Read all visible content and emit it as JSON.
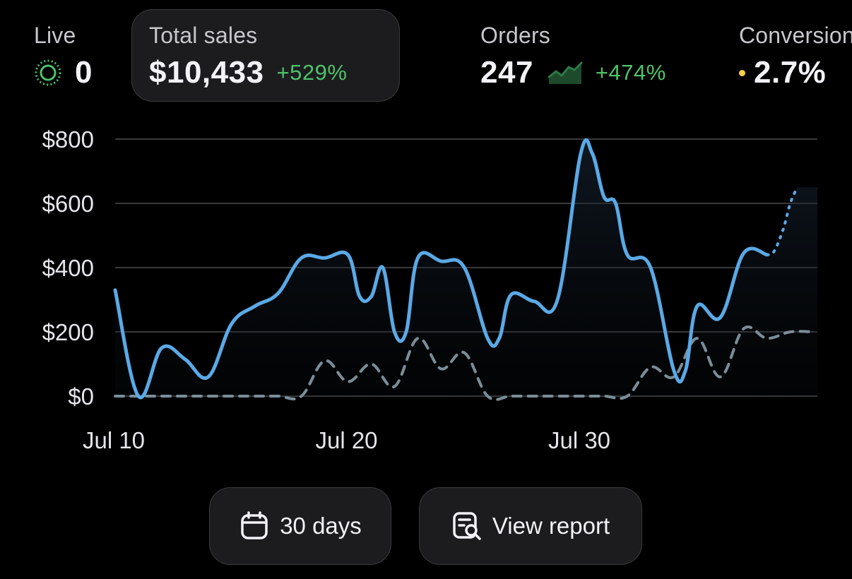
{
  "metrics": {
    "live": {
      "label": "Live",
      "value": "0"
    },
    "total_sales": {
      "label": "Total sales",
      "value": "$10,433",
      "change": "+529%"
    },
    "orders": {
      "label": "Orders",
      "value": "247",
      "change": "+474%"
    },
    "conversion": {
      "label": "Conversion",
      "value": "2.7%"
    }
  },
  "icons": {
    "live": "live-pulse-icon",
    "orders_trend": "sparkline-icon",
    "conversion_status": "dot-icon",
    "range": "calendar-icon",
    "report": "report-search-icon"
  },
  "colors": {
    "background": "#000000",
    "current_series": "#5aa9e6",
    "previous_series": "#7a8e99",
    "positive_change": "#4fc26a",
    "live_ring": "#4fc26a",
    "conversion_dot": "#f5d142",
    "grid": "#3a3a3c"
  },
  "chart_data": {
    "type": "line",
    "y_ticks": [
      "$800",
      "$600",
      "$400",
      "$200",
      "$0"
    ],
    "y_tick_values": [
      800,
      600,
      400,
      200,
      0
    ],
    "ylim": [
      0,
      800
    ],
    "x_tick_labels": [
      "Jul 10",
      "Jul 20",
      "Jul 30"
    ],
    "x_tick_days": [
      10,
      20,
      30
    ],
    "xlim": [
      10,
      40
    ],
    "grid": true,
    "series": [
      {
        "style": "solid",
        "x": [
          10,
          11,
          12,
          13,
          14,
          15,
          16,
          17,
          18,
          19,
          20,
          20.5,
          21,
          21.5,
          22,
          22.5,
          23,
          24,
          25,
          26,
          26.5,
          27,
          28,
          29,
          30,
          30.5,
          31,
          31.5,
          32,
          33,
          34,
          34.5,
          35,
          36,
          37,
          38
        ],
        "y": [
          330,
          0,
          150,
          115,
          60,
          225,
          280,
          320,
          430,
          430,
          440,
          310,
          310,
          400,
          200,
          200,
          430,
          420,
          400,
          180,
          180,
          315,
          295,
          300,
          755,
          755,
          620,
          600,
          440,
          400,
          80,
          80,
          280,
          245,
          445,
          440
        ]
      },
      {
        "style": "dotted",
        "x": [
          38,
          38.3,
          38.7,
          39,
          39.3
        ],
        "y": [
          440,
          450,
          520,
          600,
          650
        ]
      },
      {
        "style": "dashed",
        "x": [
          10,
          11,
          12,
          13,
          14,
          15,
          16,
          17,
          18,
          19,
          20,
          21,
          22,
          23,
          24,
          25,
          26,
          27,
          28,
          29,
          30,
          31,
          32,
          33,
          34,
          35,
          36,
          37,
          38,
          39,
          40
        ],
        "y": [
          0,
          0,
          0,
          0,
          0,
          0,
          0,
          0,
          0,
          110,
          45,
          100,
          30,
          180,
          85,
          135,
          0,
          0,
          0,
          0,
          0,
          0,
          0,
          90,
          60,
          180,
          60,
          210,
          180,
          200,
          200
        ]
      }
    ]
  },
  "actions": {
    "range_label": "30 days",
    "report_label": "View report"
  }
}
